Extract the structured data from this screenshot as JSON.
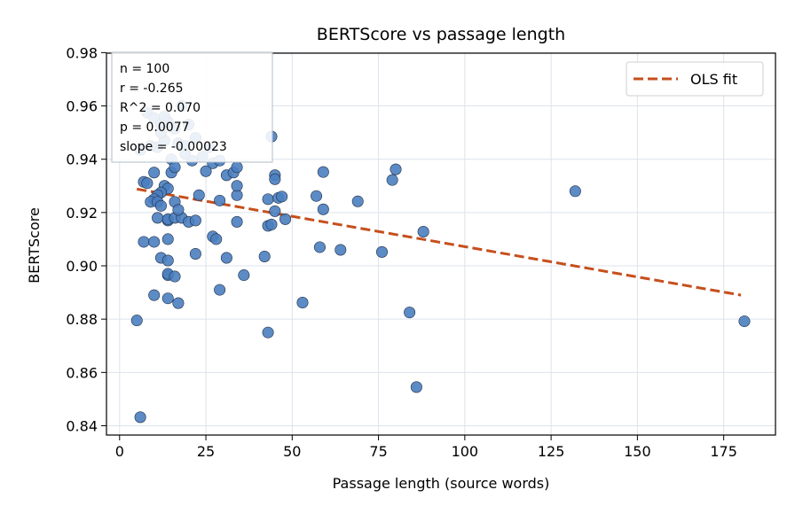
{
  "chart_data": {
    "type": "scatter",
    "title": "BERTScore vs passage length",
    "xlabel": "Passage length (source words)",
    "ylabel": "BERTScore",
    "xlim": [
      -3.8,
      190
    ],
    "ylim": [
      0.8365,
      0.9798
    ],
    "xticks": [
      0,
      25,
      50,
      75,
      100,
      125,
      150,
      175
    ],
    "yticks": [
      0.84,
      0.86,
      0.88,
      0.9,
      0.92,
      0.94,
      0.96,
      0.98
    ],
    "xtick_labels": [
      "0",
      "25",
      "50",
      "75",
      "100",
      "125",
      "150",
      "175"
    ],
    "ytick_labels": [
      "0.84",
      "0.86",
      "0.88",
      "0.90",
      "0.92",
      "0.94",
      "0.96",
      "0.98"
    ],
    "grid": true,
    "legend": {
      "position": "upper-right",
      "entries": [
        "OLS fit"
      ]
    },
    "stats_box": {
      "position": "upper-left",
      "lines": [
        "n = 100",
        "r = -0.265",
        "R^2 = 0.070",
        "p = 0.0077",
        "slope = -0.00023"
      ]
    },
    "fit_line": {
      "x": [
        5,
        180
      ],
      "y": [
        0.9288,
        0.889
      ],
      "color": "#c64f1c",
      "style": "dashed"
    },
    "point_color": "#4a7ebf",
    "point_edge_color": "#1f2f47",
    "points": [
      [
        6,
        0.9435
      ],
      [
        8,
        0.9575
      ],
      [
        10,
        0.9555
      ],
      [
        12,
        0.953
      ],
      [
        14,
        0.954
      ],
      [
        16,
        0.9515
      ],
      [
        18,
        0.96
      ],
      [
        20,
        0.953
      ],
      [
        11,
        0.9445
      ],
      [
        13,
        0.947
      ],
      [
        15,
        0.94
      ],
      [
        17,
        0.946
      ],
      [
        19,
        0.942
      ],
      [
        21,
        0.9395
      ],
      [
        12,
        0.95
      ],
      [
        9,
        0.945
      ],
      [
        24,
        0.941
      ],
      [
        27,
        0.9385
      ],
      [
        29,
        0.9395
      ],
      [
        44,
        0.9485
      ],
      [
        10,
        0.935
      ],
      [
        15,
        0.935
      ],
      [
        16,
        0.937
      ],
      [
        25,
        0.9355
      ],
      [
        31,
        0.934
      ],
      [
        33,
        0.935
      ],
      [
        34,
        0.937
      ],
      [
        45,
        0.934
      ],
      [
        45,
        0.9325
      ],
      [
        59,
        0.9352
      ],
      [
        80,
        0.9362
      ],
      [
        79,
        0.9322
      ],
      [
        7,
        0.9315
      ],
      [
        8,
        0.931
      ],
      [
        13,
        0.93
      ],
      [
        14,
        0.929
      ],
      [
        12,
        0.9275
      ],
      [
        11,
        0.9265
      ],
      [
        10,
        0.925
      ],
      [
        9,
        0.924
      ],
      [
        11,
        0.924
      ],
      [
        12,
        0.9225
      ],
      [
        16,
        0.924
      ],
      [
        23,
        0.9265
      ],
      [
        29,
        0.9245
      ],
      [
        34,
        0.9265
      ],
      [
        34,
        0.93
      ],
      [
        43,
        0.925
      ],
      [
        46,
        0.9255
      ],
      [
        47,
        0.926
      ],
      [
        45,
        0.9205
      ],
      [
        57,
        0.9262
      ],
      [
        59,
        0.9212
      ],
      [
        69,
        0.9242
      ],
      [
        132,
        0.928
      ],
      [
        11,
        0.918
      ],
      [
        14,
        0.917
      ],
      [
        14,
        0.9175
      ],
      [
        16,
        0.918
      ],
      [
        18,
        0.918
      ],
      [
        20,
        0.9165
      ],
      [
        22,
        0.917
      ],
      [
        34,
        0.9165
      ],
      [
        43,
        0.915
      ],
      [
        44,
        0.9155
      ],
      [
        48,
        0.9175
      ],
      [
        88,
        0.9128
      ],
      [
        7,
        0.909
      ],
      [
        10,
        0.909
      ],
      [
        14,
        0.91
      ],
      [
        27,
        0.911
      ],
      [
        28,
        0.91
      ],
      [
        58,
        0.907
      ],
      [
        64,
        0.906
      ],
      [
        76,
        0.9052
      ],
      [
        12,
        0.903
      ],
      [
        14,
        0.902
      ],
      [
        22,
        0.9045
      ],
      [
        31,
        0.903
      ],
      [
        42,
        0.9035
      ],
      [
        14,
        0.8965
      ],
      [
        14,
        0.897
      ],
      [
        16,
        0.896
      ],
      [
        36,
        0.8965
      ],
      [
        29,
        0.891
      ],
      [
        10,
        0.889
      ],
      [
        14,
        0.8878
      ],
      [
        17,
        0.886
      ],
      [
        53,
        0.8862
      ],
      [
        84,
        0.8825
      ],
      [
        5,
        0.8795
      ],
      [
        181,
        0.8792
      ],
      [
        43,
        0.875
      ],
      [
        86,
        0.8545
      ],
      [
        6,
        0.8432
      ],
      [
        17,
        0.921
      ],
      [
        19,
        0.945
      ],
      [
        22,
        0.948
      ],
      [
        26,
        0.9445
      ],
      [
        13,
        0.956
      ]
    ]
  }
}
